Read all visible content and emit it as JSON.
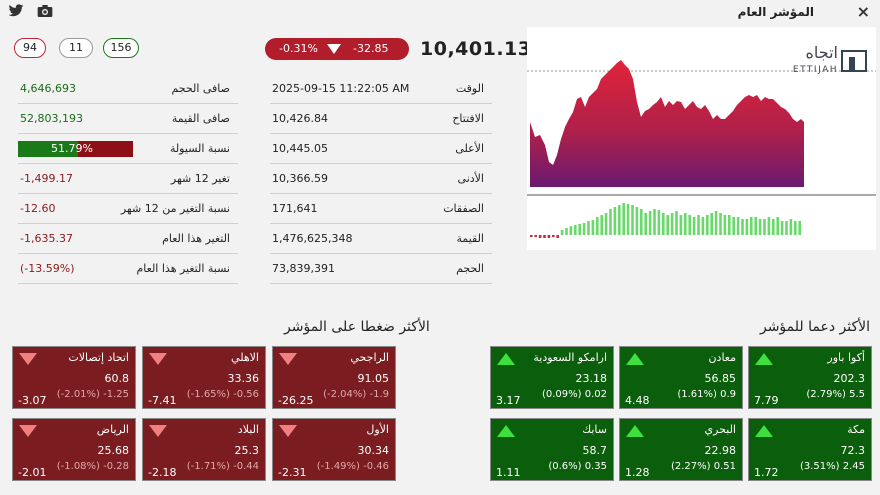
{
  "header": {
    "title": "المؤشر العام",
    "close_icon": "×"
  },
  "counts": {
    "declining": "94",
    "unchanged": "11",
    "advancing": "156"
  },
  "index": {
    "value": "10,401.13",
    "change": "-32.85",
    "change_pct": "-0.31%"
  },
  "details": [
    {
      "label": "الوقت",
      "value": "2025-09-15 11:22:05 AM"
    },
    {
      "label": "الافتتاح",
      "value": "10,426.84"
    },
    {
      "label": "الأعلى",
      "value": "10,445.05"
    },
    {
      "label": "الأدنى",
      "value": "10,366.59"
    },
    {
      "label": "الصفقات",
      "value": "171,641"
    },
    {
      "label": "القيمة",
      "value": "1,476,625,348"
    },
    {
      "label": "الحجم",
      "value": "73,839,391"
    }
  ],
  "stats": [
    {
      "label": "صافى الحجم",
      "value": "4,646,693"
    },
    {
      "label": "صافى القيمة",
      "value": "52,803,193"
    },
    {
      "label": "نسبة السيولة",
      "value": "51.79%",
      "fraction": 0.5179
    },
    {
      "label": "تغير 12 شهر",
      "value": "-1,499.17"
    },
    {
      "label": "نسبة التغير من 12 شهر",
      "value": "-12.60"
    },
    {
      "label": "التغير هذا العام",
      "value": "-1,635.37"
    },
    {
      "label": "نسبة التغير هذا العام",
      "value": "(-13.59%)"
    }
  ],
  "chart": {
    "logo_arabic": "اتجاه",
    "logo_latin": "ETTIJAH"
  },
  "sections": {
    "pressure_title": "الأكثر ضغطا على المؤشر",
    "support_title": "الأكثر دعما للمؤشر"
  },
  "support_cards": [
    {
      "name": "أكوا باور",
      "price": "202.3",
      "pct": "(2.79%) 5.5",
      "vol": "7.79"
    },
    {
      "name": "معادن",
      "price": "56.85",
      "pct": "(1.61%) 0.9",
      "vol": "4.48"
    },
    {
      "name": "ارامكو السعودية",
      "price": "23.18",
      "pct": "(0.09%) 0.02",
      "vol": "3.17"
    },
    {
      "name": "مكة",
      "price": "72.3",
      "pct": "(3.51%) 2.45",
      "vol": "1.72"
    },
    {
      "name": "البحري",
      "price": "22.98",
      "pct": "(2.27%) 0.51",
      "vol": "1.28"
    },
    {
      "name": "سابك",
      "price": "58.7",
      "pct": "(0.6%) 0.35",
      "vol": "1.11"
    }
  ],
  "pressure_cards": [
    {
      "name": "الراجحي",
      "price": "91.05",
      "pct": "(-2.04%) -1.9",
      "vol": "-26.25"
    },
    {
      "name": "الاهلي",
      "price": "33.36",
      "pct": "(-1.65%) -0.56",
      "vol": "-7.41"
    },
    {
      "name": "اتحاد إتصالات",
      "price": "60.8",
      "pct": "(-2.01%) -1.25",
      "vol": "-3.07"
    },
    {
      "name": "الأول",
      "price": "30.34",
      "pct": "(-1.49%) -0.46",
      "vol": "-2.31"
    },
    {
      "name": "البلاد",
      "price": "25.3",
      "pct": "(-1.71%) -0.44",
      "vol": "-2.18"
    },
    {
      "name": "الرياض",
      "price": "25.68",
      "pct": "(-1.08%) -0.28",
      "vol": "-2.01"
    }
  ],
  "colors": {
    "up": "#0b5e0b",
    "down": "#7a1c20",
    "accent_red": "#b11d2b"
  }
}
